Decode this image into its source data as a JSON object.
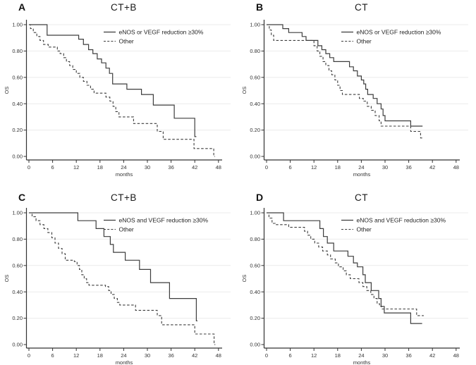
{
  "figure": {
    "background": "#ffffff"
  },
  "colors": {
    "curve": "#3d3d3d",
    "grid": "#ebebeb",
    "axis": "#333333",
    "text": "#1a1a1a"
  },
  "chart_data": [
    {
      "type": "line",
      "panel": "A",
      "title": "CT+B",
      "xlabel": "months",
      "ylabel": "OS",
      "xlim": [
        0,
        48
      ],
      "ylim": [
        0.0,
        1.0
      ],
      "xticks": [
        0,
        6,
        12,
        18,
        24,
        30,
        36,
        42,
        48
      ],
      "yticks": [
        "0.00",
        "0.20",
        "0.40",
        "0.60",
        "0.80",
        "1.00"
      ],
      "grid": "horizontal",
      "legend_position": "top-right",
      "legend": [
        {
          "label": "eNOS or VEGF reduction ≥30%",
          "style": "solid"
        },
        {
          "label": "Other",
          "style": "dashed"
        }
      ],
      "series": [
        {
          "name": "eNOS or VEGF reduction ≥30%",
          "style": "solid",
          "end": 42.4,
          "points": [
            [
              0,
              1.0
            ],
            [
              4.6,
              0.92
            ],
            [
              12.6,
              0.89
            ],
            [
              13.8,
              0.85
            ],
            [
              15.1,
              0.81
            ],
            [
              16.2,
              0.78
            ],
            [
              17.3,
              0.74
            ],
            [
              18.4,
              0.71
            ],
            [
              19.5,
              0.67
            ],
            [
              20.4,
              0.63
            ],
            [
              21.2,
              0.55
            ],
            [
              24.8,
              0.51
            ],
            [
              28.5,
              0.47
            ],
            [
              31.5,
              0.39
            ],
            [
              36.8,
              0.29
            ],
            [
              42.0,
              0.15
            ]
          ]
        },
        {
          "name": "Other",
          "style": "dashed",
          "end": 47.1,
          "points": [
            [
              0,
              1.0
            ],
            [
              0.4,
              0.97
            ],
            [
              1.1,
              0.94
            ],
            [
              2.0,
              0.91
            ],
            [
              2.8,
              0.88
            ],
            [
              3.7,
              0.85
            ],
            [
              4.9,
              0.83
            ],
            [
              7.2,
              0.8
            ],
            [
              7.9,
              0.78
            ],
            [
              8.8,
              0.75
            ],
            [
              9.5,
              0.72
            ],
            [
              10.3,
              0.69
            ],
            [
              11.1,
              0.66
            ],
            [
              12.0,
              0.63
            ],
            [
              12.9,
              0.6
            ],
            [
              13.8,
              0.57
            ],
            [
              14.7,
              0.54
            ],
            [
              15.6,
              0.51
            ],
            [
              16.5,
              0.48
            ],
            [
              19.5,
              0.45
            ],
            [
              20.5,
              0.42
            ],
            [
              21.3,
              0.38
            ],
            [
              22.0,
              0.34
            ],
            [
              22.8,
              0.3
            ],
            [
              26.5,
              0.25
            ],
            [
              32.5,
              0.19
            ],
            [
              34.0,
              0.13
            ],
            [
              41.8,
              0.06
            ],
            [
              46.8,
              0.0
            ]
          ]
        }
      ]
    },
    {
      "type": "line",
      "panel": "B",
      "title": "CT",
      "xlabel": "months",
      "ylabel": "OS",
      "xlim": [
        0,
        48
      ],
      "ylim": [
        0.0,
        1.0
      ],
      "xticks": [
        0,
        6,
        12,
        18,
        24,
        30,
        36,
        42,
        48
      ],
      "yticks": [
        "0.00",
        "0.20",
        "0.40",
        "0.60",
        "0.80",
        "1.00"
      ],
      "grid": "horizontal",
      "legend_position": "top-right",
      "legend": [
        {
          "label": "eNOS or VEGF reduction ≥30%",
          "style": "solid"
        },
        {
          "label": "Other",
          "style": "dashed"
        }
      ],
      "series": [
        {
          "name": "eNOS or VEGF reduction ≥30%",
          "style": "solid",
          "end": 39.5,
          "points": [
            [
              0,
              1.0
            ],
            [
              4.1,
              0.97
            ],
            [
              5.6,
              0.94
            ],
            [
              9.0,
              0.91
            ],
            [
              10.0,
              0.88
            ],
            [
              13.0,
              0.84
            ],
            [
              14.0,
              0.81
            ],
            [
              15.0,
              0.78
            ],
            [
              16.0,
              0.75
            ],
            [
              17.0,
              0.72
            ],
            [
              21.0,
              0.68
            ],
            [
              22.0,
              0.65
            ],
            [
              23.0,
              0.61
            ],
            [
              24.0,
              0.58
            ],
            [
              24.6,
              0.55
            ],
            [
              25.1,
              0.51
            ],
            [
              25.6,
              0.47
            ],
            [
              27.0,
              0.44
            ],
            [
              28.0,
              0.4
            ],
            [
              29.0,
              0.36
            ],
            [
              29.5,
              0.31
            ],
            [
              30.0,
              0.27
            ],
            [
              36.5,
              0.23
            ]
          ]
        },
        {
          "name": "Other",
          "style": "dashed",
          "end": 39.6,
          "points": [
            [
              0,
              1.0
            ],
            [
              0.7,
              0.96
            ],
            [
              1.2,
              0.92
            ],
            [
              1.8,
              0.88
            ],
            [
              12.0,
              0.84
            ],
            [
              12.8,
              0.8
            ],
            [
              13.5,
              0.76
            ],
            [
              14.3,
              0.72
            ],
            [
              15.0,
              0.69
            ],
            [
              15.8,
              0.65
            ],
            [
              16.5,
              0.62
            ],
            [
              17.3,
              0.58
            ],
            [
              18.0,
              0.54
            ],
            [
              18.6,
              0.5
            ],
            [
              19.2,
              0.47
            ],
            [
              23.5,
              0.44
            ],
            [
              24.5,
              0.42
            ],
            [
              25.5,
              0.38
            ],
            [
              26.5,
              0.35
            ],
            [
              27.5,
              0.31
            ],
            [
              28.5,
              0.27
            ],
            [
              29.0,
              0.23
            ],
            [
              36.5,
              0.19
            ],
            [
              39.0,
              0.14
            ]
          ]
        }
      ]
    },
    {
      "type": "line",
      "panel": "C",
      "title": "CT+B",
      "xlabel": "months",
      "ylabel": "OS",
      "xlim": [
        0,
        48
      ],
      "ylim": [
        0.0,
        1.0
      ],
      "xticks": [
        0,
        6,
        12,
        18,
        24,
        30,
        36,
        42,
        48
      ],
      "yticks": [
        "0.00",
        "0.20",
        "0.40",
        "0.60",
        "0.80",
        "1.00"
      ],
      "grid": "horizontal",
      "legend_position": "top-right",
      "legend": [
        {
          "label": "eNOS and VEGF reduction ≥30%",
          "style": "solid"
        },
        {
          "label": "Other",
          "style": "dashed"
        }
      ],
      "series": [
        {
          "name": "eNOS and VEGF reduction ≥30%",
          "style": "solid",
          "end": 42.7,
          "points": [
            [
              0,
              1.0
            ],
            [
              12.4,
              0.94
            ],
            [
              17.0,
              0.88
            ],
            [
              19.0,
              0.82
            ],
            [
              20.6,
              0.76
            ],
            [
              21.4,
              0.7
            ],
            [
              24.4,
              0.64
            ],
            [
              28.0,
              0.57
            ],
            [
              30.8,
              0.47
            ],
            [
              35.6,
              0.35
            ],
            [
              42.4,
              0.18
            ]
          ]
        },
        {
          "name": "Other",
          "style": "dashed",
          "end": 47.2,
          "points": [
            [
              0,
              1.0
            ],
            [
              0.8,
              0.97
            ],
            [
              1.8,
              0.94
            ],
            [
              2.8,
              0.91
            ],
            [
              3.8,
              0.88
            ],
            [
              4.8,
              0.85
            ],
            [
              5.8,
              0.81
            ],
            [
              6.6,
              0.77
            ],
            [
              7.5,
              0.73
            ],
            [
              8.4,
              0.69
            ],
            [
              9.2,
              0.64
            ],
            [
              11.5,
              0.63
            ],
            [
              12.2,
              0.6
            ],
            [
              12.8,
              0.57
            ],
            [
              13.4,
              0.53
            ],
            [
              14.0,
              0.5
            ],
            [
              14.6,
              0.47
            ],
            [
              15.2,
              0.45
            ],
            [
              19.4,
              0.44
            ],
            [
              20.2,
              0.41
            ],
            [
              20.8,
              0.38
            ],
            [
              21.6,
              0.35
            ],
            [
              22.4,
              0.32
            ],
            [
              23.0,
              0.3
            ],
            [
              27.0,
              0.26
            ],
            [
              32.5,
              0.22
            ],
            [
              33.6,
              0.15
            ],
            [
              42.0,
              0.08
            ],
            [
              46.9,
              0.0
            ]
          ]
        }
      ]
    },
    {
      "type": "line",
      "panel": "D",
      "title": "CT",
      "xlabel": "months",
      "ylabel": "OS",
      "xlim": [
        0,
        48
      ],
      "ylim": [
        0.0,
        1.0
      ],
      "xticks": [
        0,
        6,
        12,
        18,
        24,
        30,
        36,
        42,
        48
      ],
      "yticks": [
        "0.00",
        "0.20",
        "0.40",
        "0.60",
        "0.80",
        "1.00"
      ],
      "grid": "horizontal",
      "legend_position": "top-right",
      "legend": [
        {
          "label": "eNOS and VEGF reduction ≥30%",
          "style": "solid"
        },
        {
          "label": "Other",
          "style": "dashed"
        }
      ],
      "series": [
        {
          "name": "eNOS and VEGF reduction ≥30%",
          "style": "solid",
          "end": 39.4,
          "points": [
            [
              0,
              1.0
            ],
            [
              4.3,
              0.94
            ],
            [
              13.5,
              0.88
            ],
            [
              14.4,
              0.82
            ],
            [
              15.4,
              0.77
            ],
            [
              17.0,
              0.71
            ],
            [
              20.6,
              0.67
            ],
            [
              22.0,
              0.62
            ],
            [
              23.0,
              0.59
            ],
            [
              24.4,
              0.53
            ],
            [
              25.0,
              0.47
            ],
            [
              26.5,
              0.41
            ],
            [
              28.4,
              0.35
            ],
            [
              29.0,
              0.29
            ],
            [
              29.8,
              0.24
            ],
            [
              36.5,
              0.16
            ]
          ]
        },
        {
          "name": "Other",
          "style": "dashed",
          "end": 39.8,
          "points": [
            [
              0,
              1.0
            ],
            [
              0.6,
              0.96
            ],
            [
              1.4,
              0.92
            ],
            [
              2.2,
              0.91
            ],
            [
              5.6,
              0.89
            ],
            [
              9.6,
              0.86
            ],
            [
              10.4,
              0.83
            ],
            [
              11.2,
              0.8
            ],
            [
              12.2,
              0.77
            ],
            [
              13.2,
              0.74
            ],
            [
              14.2,
              0.71
            ],
            [
              15.4,
              0.68
            ],
            [
              16.2,
              0.65
            ],
            [
              17.4,
              0.62
            ],
            [
              18.2,
              0.59
            ],
            [
              19.4,
              0.56
            ],
            [
              20.2,
              0.53
            ],
            [
              21.2,
              0.5
            ],
            [
              23.4,
              0.47
            ],
            [
              24.4,
              0.44
            ],
            [
              25.4,
              0.41
            ],
            [
              26.4,
              0.38
            ],
            [
              27.2,
              0.35
            ],
            [
              28.0,
              0.31
            ],
            [
              28.6,
              0.29
            ],
            [
              29.2,
              0.27
            ],
            [
              38.0,
              0.22
            ]
          ]
        }
      ]
    }
  ]
}
